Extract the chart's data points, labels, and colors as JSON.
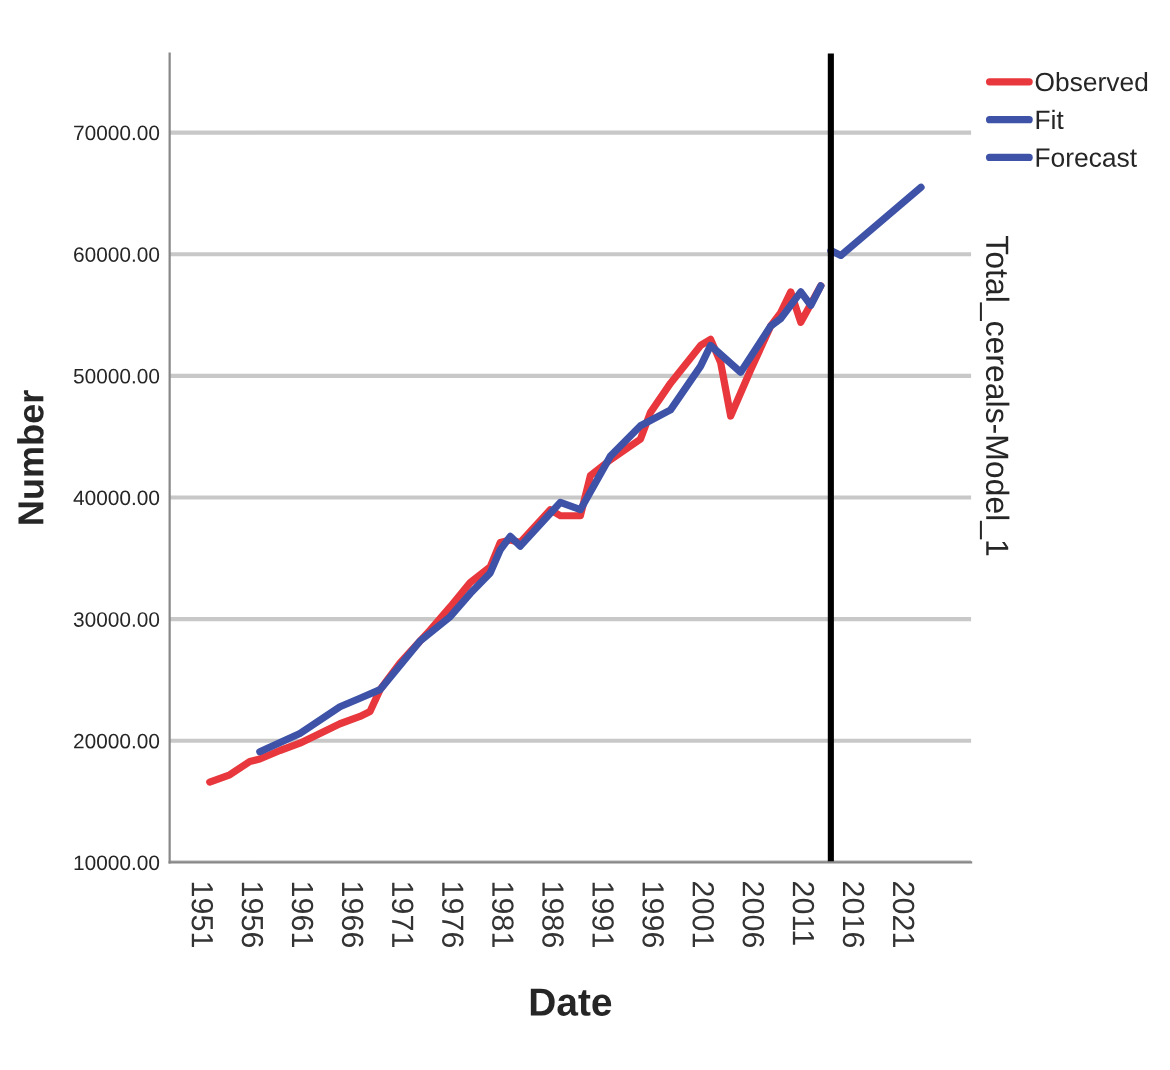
{
  "chart_data": {
    "type": "line",
    "xlabel": "Date",
    "ylabel": "Number",
    "annotations": [
      "Total_cereals-Model_1"
    ],
    "xlim": [
      1948,
      2028
    ],
    "xticks": [
      1951,
      1956,
      1961,
      1966,
      1971,
      1976,
      1981,
      1986,
      1991,
      1996,
      2001,
      2006,
      2011,
      2016,
      2021
    ],
    "ylim": [
      10000,
      76500
    ],
    "yticks": [
      {
        "value": 10000,
        "label": "10000.00"
      },
      {
        "value": 20000,
        "label": "20000.00"
      },
      {
        "value": 30000,
        "label": "30000.00"
      },
      {
        "value": 40000,
        "label": "40000.00"
      },
      {
        "value": 50000,
        "label": "50000.00"
      },
      {
        "value": 60000,
        "label": "60000.00"
      },
      {
        "value": 70000,
        "label": "70000.00"
      }
    ],
    "grid": "y",
    "legend": "top right",
    "line_style": "solid",
    "marker": "none",
    "ref_lines": [
      {
        "axis": "x",
        "value": 2014,
        "label": null,
        "color": "#000000"
      }
    ],
    "series": [
      {
        "name": "Observed",
        "color": "#e8383d",
        "x": [
          1952,
          1954,
          1956,
          1957,
          1959,
          1961,
          1963,
          1965,
          1967,
          1968,
          1969,
          1971,
          1973,
          1974,
          1976,
          1978,
          1980,
          1981,
          1982,
          1983,
          1986,
          1987,
          1989,
          1990,
          1992,
          1995,
          1996,
          1998,
          2001,
          2002,
          2003,
          2004,
          2006,
          2008,
          2009,
          2010,
          2011,
          2013
        ],
        "values": [
          16600,
          17200,
          18300,
          18500,
          19200,
          19800,
          20600,
          21400,
          22000,
          22400,
          24200,
          26400,
          28200,
          29100,
          31000,
          33000,
          34300,
          36300,
          36500,
          36300,
          39000,
          38500,
          38500,
          41800,
          43100,
          44800,
          47000,
          49400,
          52500,
          53000,
          51100,
          46700,
          50500,
          54100,
          55200,
          56900,
          54400,
          57400
        ]
      },
      {
        "name": "Fit",
        "color": "#3e53a8",
        "x": [
          1957,
          1961,
          1965,
          1967,
          1969,
          1973,
          1976,
          1978,
          1980,
          1981,
          1982,
          1983,
          1986,
          1987,
          1989,
          1992,
          1995,
          1998,
          2001,
          2002,
          2005,
          2008,
          2009,
          2011,
          2012,
          2013
        ],
        "values": [
          19100,
          20600,
          22800,
          23500,
          24200,
          28200,
          30200,
          32100,
          33800,
          35700,
          36800,
          36000,
          38700,
          39600,
          39000,
          43400,
          45900,
          47200,
          50800,
          52500,
          50300,
          54100,
          54700,
          56900,
          55800,
          57400
        ]
      },
      {
        "name": "Forecast",
        "color": "#3e53a8",
        "x": [
          2014,
          2015,
          2023
        ],
        "values": [
          60300,
          59900,
          65500
        ]
      }
    ]
  }
}
